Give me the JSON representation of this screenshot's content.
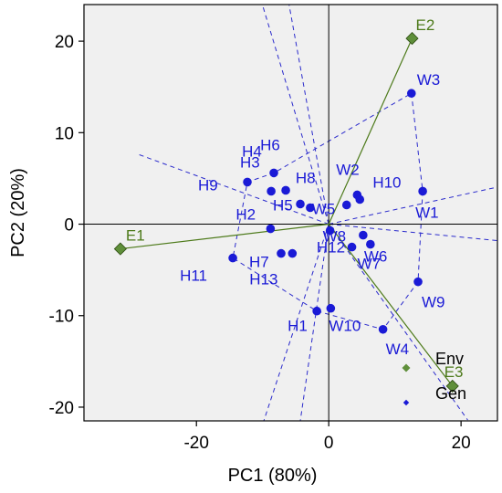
{
  "chart_data": {
    "type": "scatter",
    "xlabel": "PC1 (80%)",
    "ylabel": "PC2 (20%)",
    "xlim": [
      -37,
      25.5
    ],
    "ylim": [
      -21.5,
      24
    ],
    "xticks": [
      -20,
      0,
      20
    ],
    "yticks": [
      -20,
      -10,
      0,
      10,
      20
    ],
    "grid": false,
    "legend_position": "bottom-right",
    "colors": {
      "background": "#f0f0f0",
      "genotype": "#1a1ad6",
      "environment": "#4d7a1a",
      "environment_marker": "#5f8f3a",
      "polygon": "#2a2acc",
      "axis_line": "#000000"
    },
    "series": [
      {
        "name": "Gen",
        "points": [
          {
            "label": "H1",
            "x": -1.8,
            "y": -9.5
          },
          {
            "label": "H2",
            "x": -8.8,
            "y": -0.5
          },
          {
            "label": "H3",
            "x": -8.3,
            "y": 5.6
          },
          {
            "label": "H4",
            "x": -6.5,
            "y": 3.7
          },
          {
            "label": "H5",
            "x": -4.3,
            "y": 2.2
          },
          {
            "label": "H6",
            "x": -8.7,
            "y": 3.6
          },
          {
            "label": "H7",
            "x": -7.2,
            "y": -3.2
          },
          {
            "label": "H8",
            "x": -2.8,
            "y": 1.8
          },
          {
            "label": "H9",
            "x": -12.3,
            "y": 4.6
          },
          {
            "label": "H10",
            "x": 4.3,
            "y": 3.2
          },
          {
            "label": "H11",
            "x": -14.5,
            "y": -3.7
          },
          {
            "label": "H12",
            "x": 5.2,
            "y": -1.2
          },
          {
            "label": "H13",
            "x": -5.5,
            "y": -3.2
          },
          {
            "label": "W1",
            "x": 14.2,
            "y": 3.6
          },
          {
            "label": "W2",
            "x": 4.7,
            "y": 2.7
          },
          {
            "label": "W3",
            "x": 12.5,
            "y": 14.3
          },
          {
            "label": "W4",
            "x": 8.2,
            "y": -11.5
          },
          {
            "label": "W5",
            "x": 2.7,
            "y": 2.1
          },
          {
            "label": "W6",
            "x": 6.3,
            "y": -2.2
          },
          {
            "label": "W7",
            "x": 3.5,
            "y": -2.5
          },
          {
            "label": "W8",
            "x": 0.2,
            "y": -0.7
          },
          {
            "label": "W9",
            "x": 13.5,
            "y": -6.3
          },
          {
            "label": "W10",
            "x": 0.3,
            "y": -9.2
          }
        ]
      },
      {
        "name": "Env",
        "points": [
          {
            "label": "E1",
            "x": -31.5,
            "y": -2.7
          },
          {
            "label": "E2",
            "x": 12.6,
            "y": 20.3
          },
          {
            "label": "E3",
            "x": 18.7,
            "y": -17.7
          }
        ]
      }
    ],
    "polygon": [
      "W3",
      "W1",
      "W9",
      "W4",
      "H1",
      "H11",
      "H9",
      "H3"
    ],
    "legend": [
      {
        "label": "Env",
        "marker": "diamond"
      },
      {
        "label": "Gen",
        "marker": "diamond"
      }
    ]
  }
}
